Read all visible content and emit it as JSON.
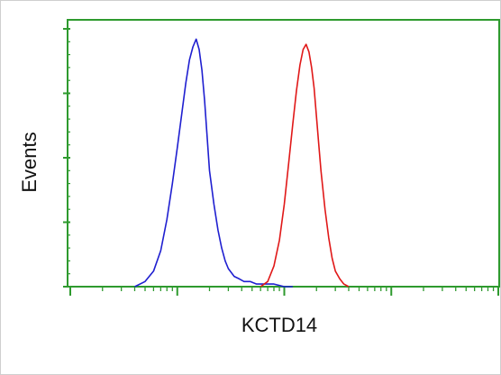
{
  "chart_data": {
    "type": "line",
    "title": "",
    "xlabel": "KCTD14",
    "ylabel": "Events",
    "x_scale": "log",
    "xlim": [
      1,
      10000
    ],
    "ylim": [
      0,
      100
    ],
    "grid": false,
    "legend": "none",
    "series": [
      {
        "color": "#1f1fd0",
        "x": [
          4,
          5,
          6,
          7,
          8,
          9,
          10,
          11,
          12,
          13,
          14,
          15,
          16,
          17,
          18,
          19,
          20,
          22,
          24,
          26,
          28,
          30,
          34,
          38,
          42,
          48,
          55,
          65,
          80,
          100,
          120
        ],
        "y": [
          0,
          2,
          6,
          14,
          26,
          40,
          54,
          67,
          79,
          88,
          93,
          96,
          92,
          84,
          72,
          58,
          45,
          32,
          22,
          15,
          10,
          7,
          4,
          3,
          2,
          2,
          1,
          1,
          1,
          0,
          0
        ]
      },
      {
        "color": "#e01818",
        "x": [
          60,
          70,
          80,
          90,
          100,
          110,
          120,
          130,
          140,
          150,
          160,
          170,
          180,
          190,
          200,
          210,
          220,
          240,
          260,
          280,
          300,
          330,
          360,
          400
        ],
        "y": [
          0,
          2,
          8,
          18,
          32,
          48,
          63,
          76,
          86,
          92,
          94,
          91,
          85,
          77,
          66,
          55,
          45,
          30,
          19,
          11,
          6,
          3,
          1,
          0
        ]
      }
    ]
  }
}
